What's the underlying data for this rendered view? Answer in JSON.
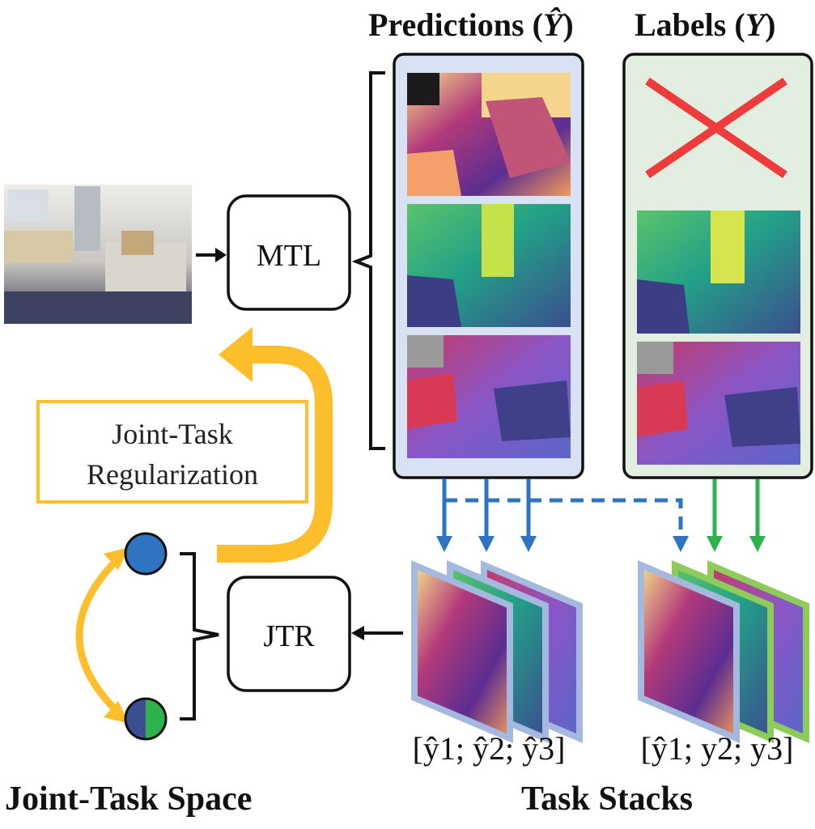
{
  "header": {
    "predictions_label": "Predictions (",
    "predictions_symbol": "Ŷ",
    "predictions_close": ")",
    "labels_label": "Labels (",
    "labels_symbol": "Y",
    "labels_close": ")"
  },
  "nodes": {
    "mtl": "MTL",
    "jtr": "JTR"
  },
  "regularization": {
    "line1": "Joint-Task",
    "line2": "Regularization"
  },
  "stacks": {
    "pred_stack": "[ŷ1; ŷ2; ŷ3]",
    "mixed_stack": "[ŷ1; y2; y3]"
  },
  "footer": {
    "joint_task_space": "Joint-Task Space",
    "task_stacks": "Task Stacks"
  },
  "colors": {
    "yellow": "#FDBE2B",
    "blue": "#2F74C0",
    "green": "#2DB24E",
    "red": "#EE3B3B",
    "pred_panel_bg": "#D8E2F2",
    "label_panel_bg": "#E2EEDF"
  }
}
